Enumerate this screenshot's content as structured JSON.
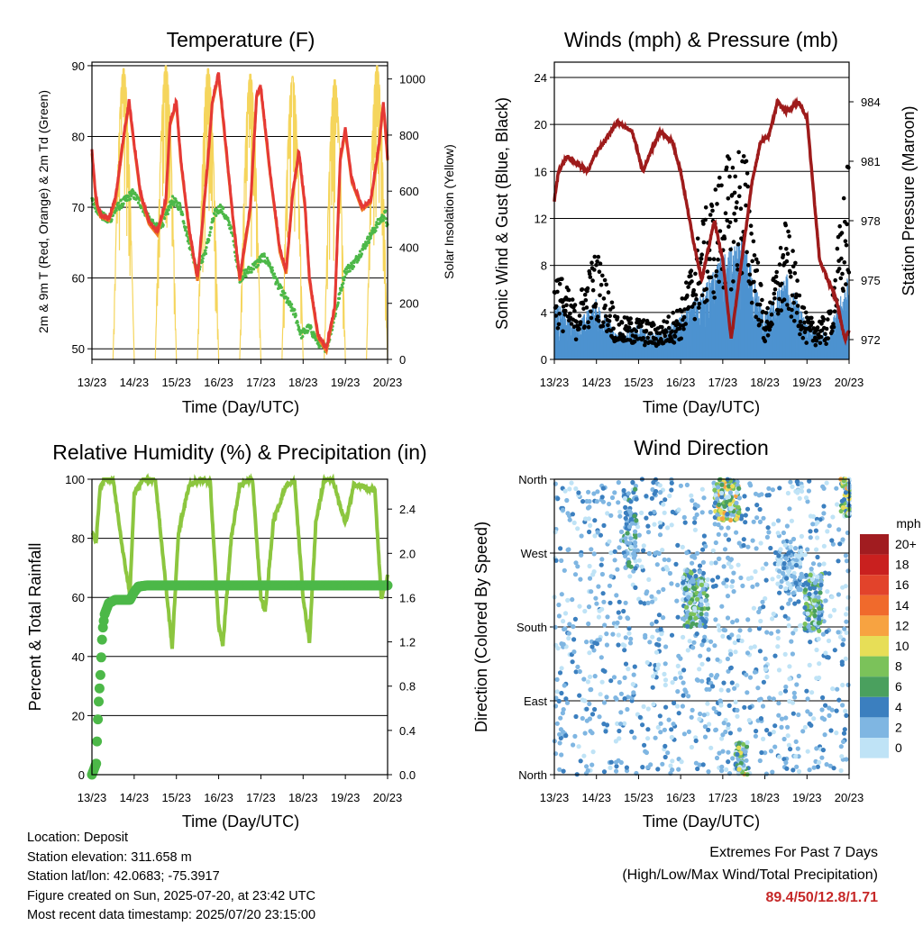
{
  "colors": {
    "temp2m": "#e53935",
    "temp9m": "#f07d22",
    "dewpoint": "#4cb848",
    "solar": "#f5d55c",
    "wind": "#4d92d0",
    "gust": "#000000",
    "pressure": "#9e1b1b",
    "rh": "#8cc63f",
    "precip": "#4cb848",
    "extremes": "#c62828"
  },
  "time_ticks": [
    "13/23",
    "14/23",
    "15/23",
    "16/23",
    "17/23",
    "18/23",
    "19/23",
    "20/23"
  ],
  "chart_data": [
    {
      "id": "temperature",
      "type": "line",
      "title": "Temperature (F)",
      "xlabel": "Time (Day/UTC)",
      "ylabel": "2m & 9m T (Red, Orange) & 2m Td (Green)",
      "ylabel_right": "Solar Insolation (Yellow)",
      "ylim": [
        48.5,
        90.5
      ],
      "yticks": [
        50,
        60,
        70,
        80,
        90
      ],
      "ylim_right": [
        0,
        1060
      ],
      "yticks_right": [
        0,
        200,
        400,
        600,
        800,
        1000
      ],
      "xlim": [
        0,
        7
      ],
      "grid_y": true,
      "series": [
        {
          "key": "temp2m",
          "x": [
            0,
            0.1,
            0.2,
            0.4,
            0.55,
            0.75,
            0.88,
            1.0,
            1.15,
            1.35,
            1.55,
            1.75,
            1.85,
            2.0,
            2.1,
            2.3,
            2.5,
            2.75,
            2.85,
            3.0,
            3.15,
            3.35,
            3.5,
            3.75,
            3.9,
            4.0,
            4.2,
            4.45,
            4.6,
            4.75,
            4.9,
            5.05,
            5.15,
            5.35,
            5.55,
            5.75,
            5.88,
            6.0,
            6.15,
            6.4,
            6.6,
            6.8,
            6.9,
            7.0
          ],
          "y": [
            78,
            71,
            69,
            68.5,
            71,
            80,
            85,
            79,
            72,
            68,
            66.5,
            71,
            82,
            85,
            77,
            67,
            60,
            77,
            85,
            89,
            80,
            68,
            60,
            70,
            86,
            87,
            76,
            64,
            61,
            72,
            78,
            70,
            60,
            52,
            50,
            56,
            77,
            81,
            74,
            70,
            71,
            79,
            85,
            77
          ]
        },
        {
          "key": "dewpoint",
          "x": [
            0,
            0.2,
            0.4,
            0.6,
            0.8,
            0.95,
            1.1,
            1.3,
            1.5,
            1.7,
            1.9,
            2.1,
            2.3,
            2.5,
            2.7,
            2.9,
            3.05,
            3.3,
            3.5,
            3.7,
            3.9,
            4.05,
            4.2,
            4.4,
            4.6,
            4.8,
            4.95,
            5.15,
            5.35,
            5.5,
            5.6,
            5.8,
            6.0,
            6.2,
            6.4,
            6.6,
            6.8,
            6.95,
            7.0
          ],
          "y": [
            71,
            69,
            68,
            70,
            71,
            72,
            71,
            69,
            67,
            68,
            71,
            70,
            65,
            61,
            64,
            69,
            70,
            67,
            60,
            61,
            62,
            63,
            62,
            59,
            57,
            55,
            52,
            53,
            51,
            50,
            51,
            56,
            61,
            62,
            64,
            66,
            68,
            69,
            67
          ]
        },
        {
          "key": "solar",
          "peaks": [
            {
              "center": 0.75,
              "peak": 1040,
              "width": 0.25
            },
            {
              "center": 1.75,
              "peak": 1050,
              "width": 0.25
            },
            {
              "center": 2.75,
              "peak": 1040,
              "width": 0.25
            },
            {
              "center": 3.75,
              "peak": 1020,
              "width": 0.25
            },
            {
              "center": 4.75,
              "peak": 1010,
              "width": 0.25
            },
            {
              "center": 5.75,
              "peak": 1000,
              "width": 0.25
            },
            {
              "center": 6.75,
              "peak": 1050,
              "width": 0.25
            }
          ]
        }
      ]
    },
    {
      "id": "winds",
      "type": "line",
      "title": "Winds (mph) & Pressure (mb)",
      "xlabel": "Time (Day/UTC)",
      "ylabel": "Sonic Wind & Gust (Blue, Black)",
      "ylabel_right": "Station Pressure (Maroon)",
      "ylim": [
        0,
        25.3
      ],
      "yticks": [
        0,
        4,
        8,
        12,
        16,
        20,
        24
      ],
      "ylim_right": [
        971.0,
        986.0
      ],
      "yticks_right": [
        972,
        975,
        978,
        981,
        984
      ],
      "xlim": [
        0,
        7
      ],
      "grid_y": true,
      "series": [
        {
          "key": "wind",
          "x": [
            0,
            0.5,
            1.0,
            1.5,
            2.0,
            2.5,
            3.0,
            3.5,
            4.0,
            4.5,
            5.0,
            5.5,
            6.0,
            6.5,
            7.0
          ],
          "y": [
            3.5,
            2,
            3.5,
            1.5,
            2,
            1.5,
            2.5,
            4,
            6,
            7,
            2.5,
            5,
            2,
            1.5,
            5
          ]
        },
        {
          "key": "gust",
          "x": [
            0,
            0.5,
            1.0,
            1.5,
            2.0,
            2.5,
            3.0,
            3.5,
            4.0,
            4.5,
            5.0,
            5.5,
            6.0,
            6.5,
            7.0
          ],
          "y": [
            7,
            4,
            8,
            3,
            3,
            2.5,
            4,
            10,
            14,
            16,
            3,
            10,
            3,
            3,
            15
          ]
        },
        {
          "key": "pressure",
          "x": [
            0,
            0.1,
            0.3,
            0.6,
            0.8,
            1.0,
            1.2,
            1.5,
            1.85,
            2.1,
            2.5,
            2.8,
            3.0,
            3.3,
            3.5,
            3.8,
            4.0,
            4.2,
            4.45,
            4.7,
            4.9,
            5.1,
            5.3,
            5.5,
            5.8,
            6.0,
            6.3,
            6.5,
            6.7,
            6.9,
            7.0
          ],
          "y": [
            979,
            980.5,
            981.2,
            980.8,
            980.5,
            981.5,
            982,
            983,
            982.5,
            980.5,
            982.5,
            982,
            980.5,
            977,
            975,
            978,
            976,
            972,
            976,
            980,
            982,
            982.3,
            984,
            983.5,
            984,
            983.2,
            976,
            975,
            974,
            972,
            972.5
          ]
        }
      ]
    },
    {
      "id": "rh_precip",
      "type": "line",
      "title": "Relative Humidity (%) & Precipitation (in)",
      "xlabel": "Time (Day/UTC)",
      "ylabel": "Percent & Total Rainfall",
      "ylim": [
        0,
        100
      ],
      "yticks": [
        0,
        20,
        40,
        60,
        80,
        100
      ],
      "ylim_right": [
        0,
        2.67
      ],
      "yticks_right": [
        "0.0",
        "0.4",
        "0.8",
        "1.2",
        "1.6",
        "2.0",
        "2.4"
      ],
      "xlim": [
        0,
        7
      ],
      "grid_y": true,
      "series": [
        {
          "key": "rh",
          "x": [
            0,
            0.1,
            0.2,
            0.3,
            0.5,
            0.75,
            0.9,
            1.0,
            1.2,
            1.5,
            1.75,
            1.9,
            2.05,
            2.3,
            2.6,
            2.8,
            3.0,
            3.1,
            3.3,
            3.5,
            3.8,
            4.0,
            4.1,
            4.3,
            4.6,
            4.8,
            5.0,
            5.15,
            5.3,
            5.5,
            5.7,
            6.0,
            6.2,
            6.5,
            6.7,
            6.85,
            7.0
          ],
          "y": [
            82,
            79,
            98,
            100,
            100,
            74,
            61,
            95,
            100,
            100,
            64,
            43,
            82,
            98,
            100,
            99,
            50,
            44,
            80,
            98,
            100,
            60,
            55,
            86,
            98,
            99,
            60,
            45,
            85,
            100,
            100,
            85,
            98,
            97,
            96,
            60,
            67
          ]
        },
        {
          "key": "precip",
          "x": [
            0,
            0.1,
            0.15,
            0.2,
            0.25,
            0.3,
            0.4,
            0.55,
            0.9,
            1.0,
            1.1,
            1.3,
            1.5,
            3.0,
            5.0,
            7.0
          ],
          "y": [
            0,
            0.1,
            0.6,
            0.9,
            1.3,
            1.45,
            1.55,
            1.58,
            1.58,
            1.65,
            1.7,
            1.71,
            1.71,
            1.71,
            1.71,
            1.71
          ]
        }
      ]
    },
    {
      "id": "wind_direction",
      "type": "scatter",
      "title": "Wind Direction",
      "xlabel": "Time (Day/UTC)",
      "ylabel": "Direction (Colored By Speed)",
      "yticks": [
        "North",
        "East",
        "South",
        "West",
        "North"
      ],
      "ylim": [
        0,
        360
      ],
      "xlim": [
        0,
        7
      ],
      "grid_y": true,
      "legend": {
        "title": "mph",
        "labels": [
          "20+",
          "18",
          "16",
          "14",
          "12",
          "10",
          "8",
          "6",
          "4",
          "2",
          "0"
        ],
        "colors": [
          "#a11c20",
          "#c9201f",
          "#e2432b",
          "#f06a2c",
          "#f7a341",
          "#e7de57",
          "#7bc25a",
          "#4aa05e",
          "#3b7fbf",
          "#7fb6e2",
          "#bfe3f6"
        ],
        "placement": "right"
      }
    }
  ],
  "info": {
    "location": "Location: Deposit",
    "elevation": "Station elevation: 311.658 m",
    "latlon": "Station lat/lon: 42.0683; -75.3917",
    "created": "Figure created on Sun, 2025-07-20, at 23:42 UTC",
    "recent": "Most recent data timestamp: 2025/07/20 23:15:00"
  },
  "extremes": {
    "title": "Extremes For Past 7 Days",
    "subtitle": "(High/Low/Max Wind/Total Precipitation)",
    "values": "89.4/50/12.8/1.71"
  }
}
